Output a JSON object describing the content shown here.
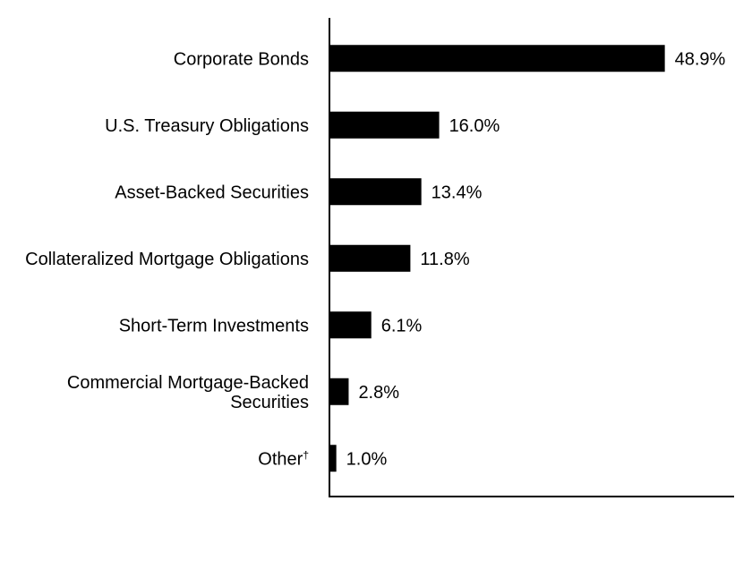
{
  "chart_data": {
    "type": "bar",
    "orientation": "horizontal",
    "categories": [
      [
        "Corporate Bonds"
      ],
      [
        "U.S. Treasury Obligations"
      ],
      [
        "Asset-Backed Securities"
      ],
      [
        "Collateralized Mortgage Obligations"
      ],
      [
        "Short-Term Investments"
      ],
      [
        "Commercial Mortgage-Backed",
        "Securities"
      ],
      [
        "Other†"
      ]
    ],
    "values": [
      48.9,
      16.0,
      13.4,
      11.8,
      6.1,
      2.8,
      1.0
    ],
    "value_labels": [
      "48.9%",
      "16.0%",
      "13.4%",
      "11.8%",
      "6.1%",
      "2.8%",
      "1.0%"
    ],
    "bar_color": "#000000",
    "title": "",
    "xlabel": "",
    "ylabel": "",
    "xlim": [
      0,
      59
    ],
    "grid": false,
    "legend": false
  }
}
